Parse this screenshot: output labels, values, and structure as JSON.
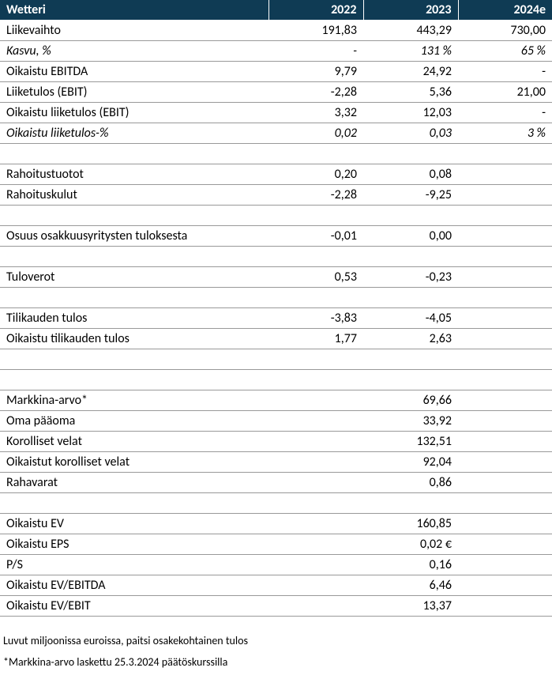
{
  "header": {
    "title": "Wetteri",
    "years": [
      "2022",
      "2023",
      "2024e"
    ]
  },
  "colors": {
    "header_bg": "#0f3b54",
    "header_text": "#ffffff",
    "row_border": "#999999",
    "text": "#000000",
    "background": "#ffffff"
  },
  "rows": [
    {
      "label": "Liikevaihto",
      "v": [
        "191,83",
        "443,29",
        "730,00"
      ]
    },
    {
      "label": "Kasvu, %",
      "v": [
        "-",
        "131 %",
        "65 %"
      ],
      "italic": true
    },
    {
      "label": "Oikaistu EBITDA",
      "v": [
        "9,79",
        "24,92",
        "-"
      ]
    },
    {
      "label": "Liiketulos (EBIT)",
      "v": [
        "-2,28",
        "5,36",
        "21,00"
      ]
    },
    {
      "label": "Oikaistu liiketulos (EBIT)",
      "v": [
        "3,32",
        "12,03",
        "-"
      ]
    },
    {
      "label": "Oikaistu liiketulos-%",
      "v": [
        "0,02",
        "0,03",
        "3 %"
      ],
      "italic": true
    },
    {
      "blank": true
    },
    {
      "label": "Rahoitustuotot",
      "v": [
        "0,20",
        "0,08",
        ""
      ]
    },
    {
      "label": "Rahoituskulut",
      "v": [
        "-2,28",
        "-9,25",
        ""
      ]
    },
    {
      "blank": true
    },
    {
      "label": "Osuus osakkuusyritysten tuloksesta",
      "v": [
        "-0,01",
        "0,00",
        ""
      ]
    },
    {
      "blank": true
    },
    {
      "label": "Tuloverot",
      "v": [
        "0,53",
        "-0,23",
        ""
      ]
    },
    {
      "blank": true
    },
    {
      "label": "Tilikauden tulos",
      "v": [
        "-3,83",
        "-4,05",
        ""
      ]
    },
    {
      "label": "Oikaistu tilikauden tulos",
      "v": [
        "1,77",
        "2,63",
        ""
      ]
    },
    {
      "blank": true
    },
    {
      "blank": true
    },
    {
      "label": "Markkina-arvo*",
      "v": [
        "",
        "69,66",
        ""
      ]
    },
    {
      "label": "Oma pääoma",
      "v": [
        "",
        "33,92",
        ""
      ]
    },
    {
      "label": "Korolliset velat",
      "v": [
        "",
        "132,51",
        ""
      ]
    },
    {
      "label": "Oikaistut korolliset velat",
      "v": [
        "",
        "92,04",
        ""
      ]
    },
    {
      "label": "Rahavarat",
      "v": [
        "",
        "0,86",
        ""
      ]
    },
    {
      "blank": true
    },
    {
      "label": "Oikaistu EV",
      "v": [
        "",
        "160,85",
        ""
      ]
    },
    {
      "label": "Oikaistu EPS",
      "v": [
        "",
        "0,02 €",
        ""
      ]
    },
    {
      "label": "P/S",
      "v": [
        "",
        "0,16",
        ""
      ]
    },
    {
      "label": "Oikaistu EV/EBITDA",
      "v": [
        "",
        "6,46",
        ""
      ]
    },
    {
      "label": "Oikaistu EV/EBIT",
      "v": [
        "",
        "13,37",
        ""
      ]
    }
  ],
  "footnotes": [
    "Luvut miljoonissa euroissa, paitsi osakekohtainen tulos",
    "*Markkina-arvo laskettu 25.3.2024 päätöskurssilla"
  ]
}
